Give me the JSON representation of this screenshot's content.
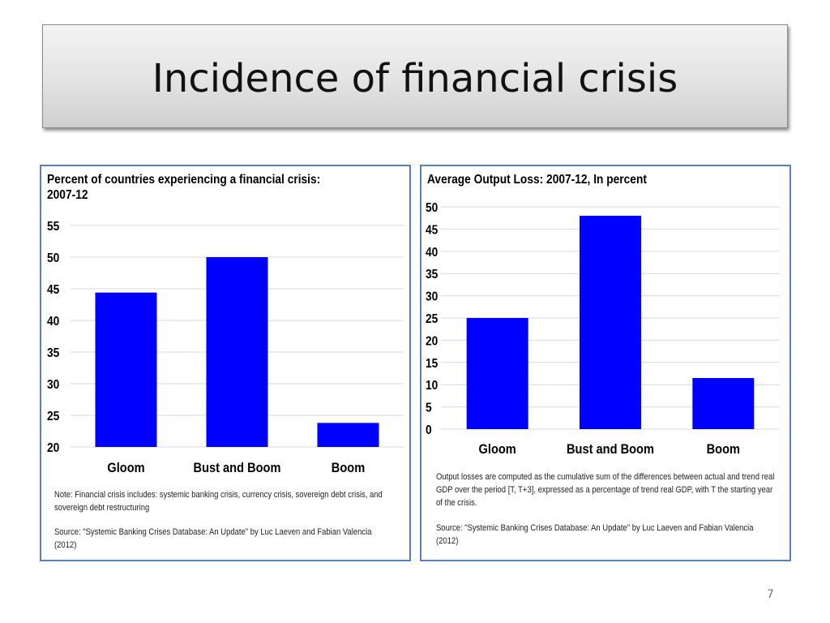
{
  "slide": {
    "title": "Incidence of financial crisis",
    "page_number": "7"
  },
  "left_panel": {
    "note": "Note: Financial crisis includes: systemic banking crisis, currency crisis, sovereign debt crisis, and sovereign debt restructuring",
    "source": "Source: \"Systemic Banking Crises Database: An Update\" by Luc Laeven and Fabian Valencia (2012)"
  },
  "right_panel": {
    "note": "Output losses are computed as the cumulative sum of the differences between actual and trend real GDP over the period [T, T+3], expressed as a percentage of trend real GDP, with T the starting year of the crisis.",
    "source": "Source: \"Systemic Banking Crises Database: An Update\" by Luc Laeven and Fabian Valencia (2012)"
  },
  "colors": {
    "bar": "#0000ff",
    "grid": "#d9d9d9",
    "border": "#5b7fbd"
  },
  "chart_data": [
    {
      "type": "bar",
      "title": "Percent of countries experiencing a financial crisis: 2007-12",
      "categories": [
        "Gloom",
        "Bust and Boom",
        "Boom"
      ],
      "values": [
        44.4,
        50,
        23.8
      ],
      "ylim": [
        20,
        55
      ],
      "yticks": [
        20,
        25,
        30,
        35,
        40,
        45,
        50,
        55
      ],
      "grid": true
    },
    {
      "type": "bar",
      "title": "Average Output Loss: 2007-12, In percent",
      "categories": [
        "Gloom",
        "Bust and Boom",
        "Boom"
      ],
      "values": [
        25,
        48,
        11.5
      ],
      "ylim": [
        0,
        50
      ],
      "yticks": [
        0,
        5,
        10,
        15,
        20,
        25,
        30,
        35,
        40,
        45,
        50
      ],
      "grid": true
    }
  ]
}
